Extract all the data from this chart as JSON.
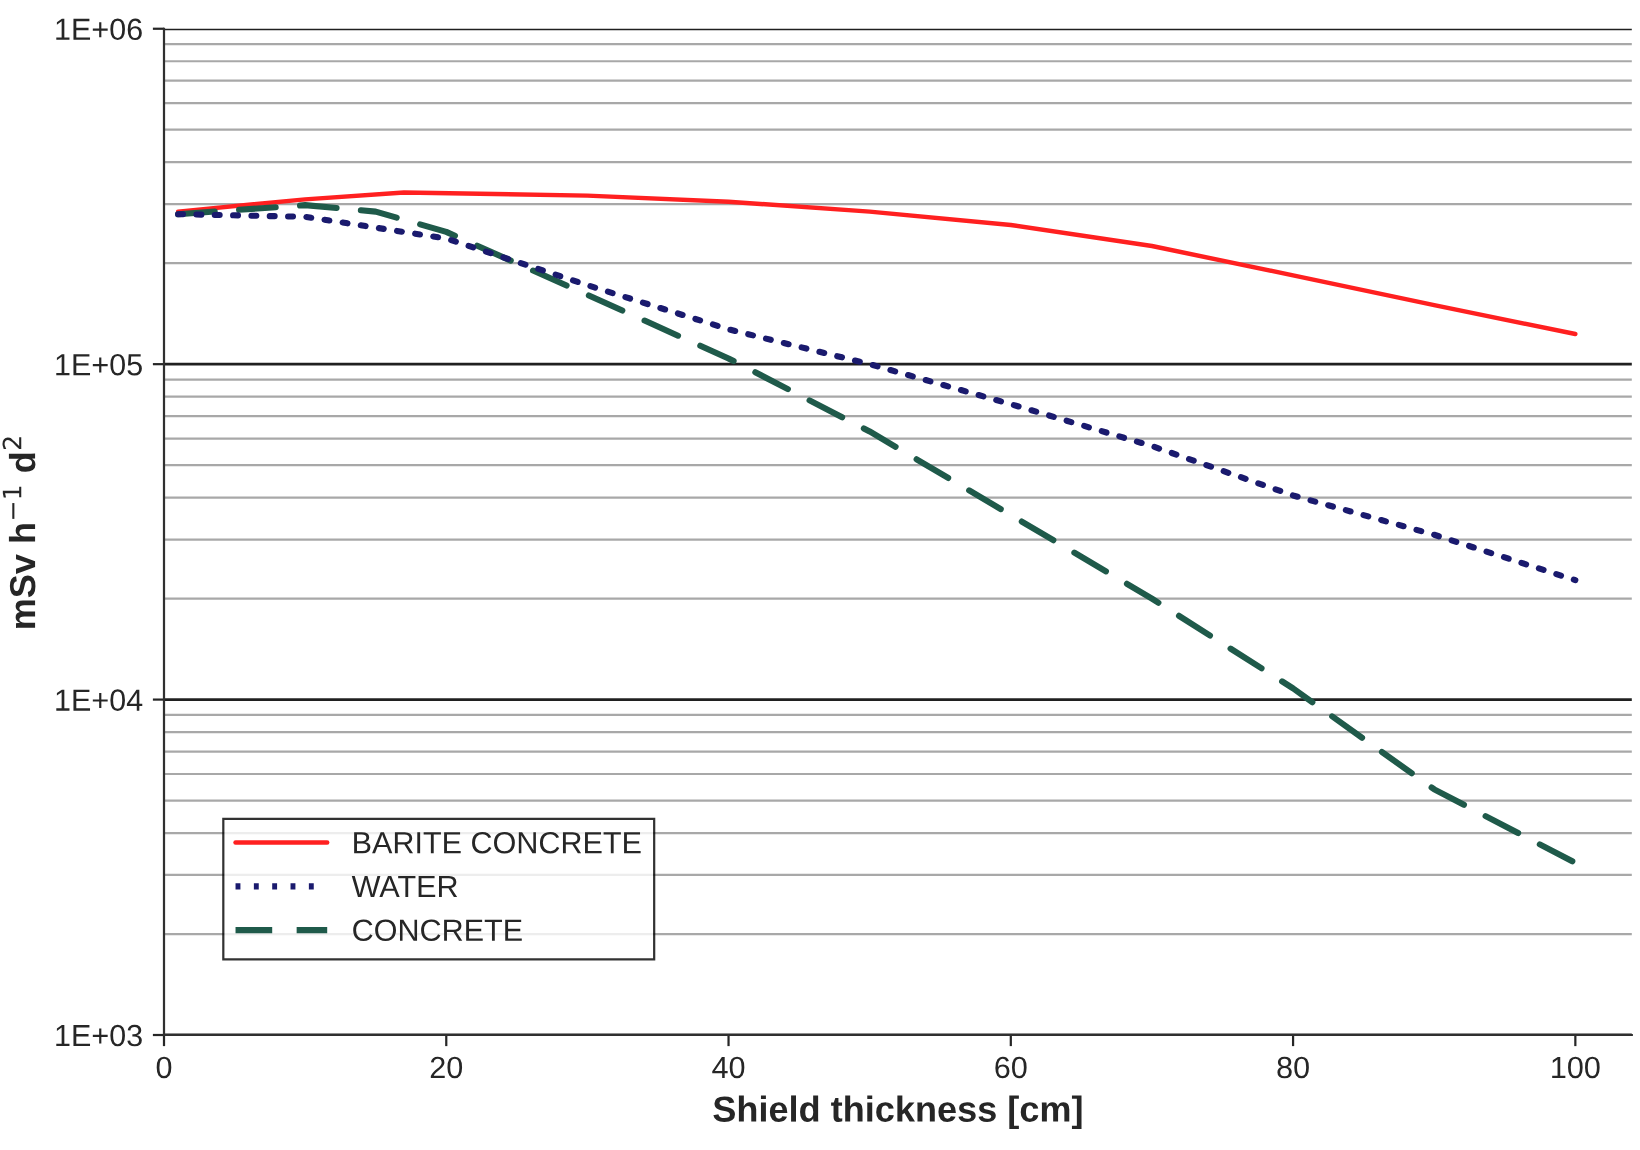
{
  "chart_data": {
    "type": "line",
    "xlabel": "Shield thickness [cm]",
    "ylabel": "mSv h$^{−1}$ d$^{2}$",
    "log": "y",
    "xlim": [
      0,
      104
    ],
    "xticks": [
      0,
      20,
      40,
      60,
      80,
      100
    ],
    "ylim": [
      1000,
      1000000
    ],
    "yticks": [
      {
        "value": 1000,
        "label": "1E+03"
      },
      {
        "value": 10000,
        "label": "1E+04"
      },
      {
        "value": 100000,
        "label": "1E+05"
      },
      {
        "value": 1000000,
        "label": "1E+06"
      }
    ],
    "grid": "y",
    "legend": "bottom left",
    "marker": "none",
    "series": [
      {
        "name": "BARITE CONCRETE",
        "color": "#ff2020",
        "line_style": "solid",
        "x": [
          1,
          10,
          17,
          30,
          40,
          50,
          60,
          70,
          80,
          90,
          100
        ],
        "values": [
          285000,
          310000,
          325000,
          318000,
          305000,
          285000,
          260000,
          225000,
          184000,
          150000,
          123000
        ]
      },
      {
        "name": "WATER",
        "color": "#1a1a6e",
        "line_style": "dotted",
        "x": [
          1,
          10,
          20,
          30,
          40,
          50,
          60,
          70,
          80,
          90,
          100
        ],
        "values": [
          280000,
          275000,
          237000,
          172000,
          127000,
          100000,
          76000,
          57000,
          40600,
          31000,
          22700
        ]
      },
      {
        "name": "CONCRETE",
        "color": "#1f5a4a",
        "line_style": "dashed",
        "x": [
          1,
          10,
          15,
          20,
          30,
          40,
          50,
          60,
          70,
          80,
          90,
          100
        ],
        "values": [
          280000,
          298000,
          285000,
          248000,
          161000,
          104000,
          63000,
          35500,
          20000,
          10800,
          5400,
          3260
        ]
      }
    ]
  }
}
